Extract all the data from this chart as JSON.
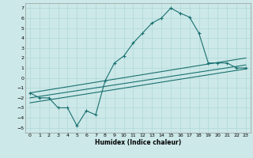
{
  "xlabel": "Humidex (Indice chaleur)",
  "background_color": "#cce8e8",
  "line_color": "#1a7070",
  "grid_color": "#b0d8d8",
  "xlim": [
    -0.5,
    23.5
  ],
  "ylim": [
    -5.5,
    7.5
  ],
  "xticks": [
    0,
    1,
    2,
    3,
    4,
    5,
    6,
    7,
    8,
    9,
    10,
    11,
    12,
    13,
    14,
    15,
    16,
    17,
    18,
    19,
    20,
    21,
    22,
    23
  ],
  "yticks": [
    -5,
    -4,
    -3,
    -2,
    -1,
    0,
    1,
    2,
    3,
    4,
    5,
    6,
    7
  ],
  "main_line_x": [
    0,
    1,
    2,
    3,
    4,
    5,
    6,
    7,
    8,
    9,
    10,
    11,
    12,
    13,
    14,
    15,
    16,
    17,
    18,
    19,
    20,
    21,
    22,
    23
  ],
  "main_line_y": [
    -1.5,
    -2,
    -2,
    -3,
    -3,
    -4.8,
    -3.3,
    -3.7,
    -0.3,
    1.5,
    2.2,
    3.5,
    4.5,
    5.5,
    6.0,
    7.0,
    6.5,
    6.1,
    4.5,
    1.5,
    1.5,
    1.5,
    1.0,
    1.0
  ],
  "line2_x": [
    0,
    23
  ],
  "line2_y": [
    -1.5,
    2.0
  ],
  "line3_x": [
    0,
    23
  ],
  "line3_y": [
    -2.0,
    1.3
  ],
  "line4_x": [
    0,
    23
  ],
  "line4_y": [
    -2.5,
    0.9
  ]
}
